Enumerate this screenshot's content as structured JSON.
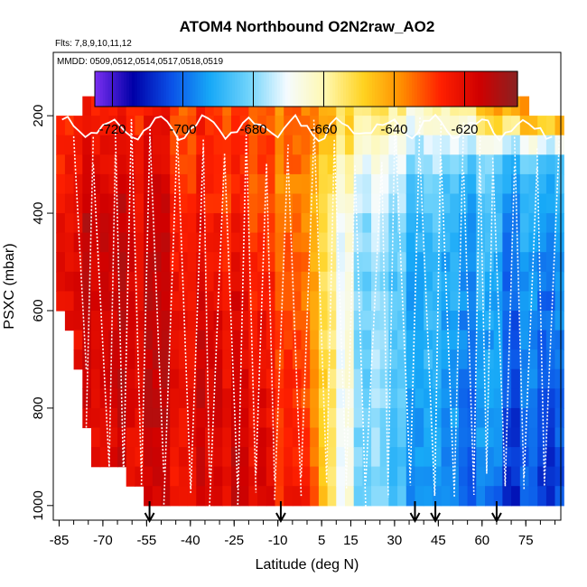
{
  "chart_data": {
    "type": "heatmap",
    "title": "ATOM4 Northbound O2N2raw_AO2",
    "note_flights": "Flts: 7,8,9,10,11,12",
    "note_dates": "MMDD: 0509,0512,0514,0517,0518,0519",
    "xlabel": "Latitude (deg N)",
    "ylabel": "PSXC (mbar)",
    "xlim": [
      -87,
      87
    ],
    "ylim": [
      1030,
      70
    ],
    "x_ticks": [
      -85,
      -70,
      -55,
      -40,
      -25,
      -10,
      5,
      15,
      30,
      45,
      60,
      75
    ],
    "y_ticks": [
      200,
      400,
      600,
      800,
      1000
    ],
    "colorbar": {
      "range": [
        -725,
        -605
      ],
      "ticks": [
        -720,
        -700,
        -680,
        -660,
        -640,
        -620
      ],
      "colors": [
        "#7b2ff0",
        "#0000a8",
        "#0b52e8",
        "#17a9f7",
        "#6fd3fb",
        "#f5fbff",
        "#fff8b0",
        "#ffd21f",
        "#ff8c00",
        "#ff2000",
        "#d00000",
        "#8a2222"
      ]
    },
    "profile_arrows_lat": [
      -54,
      -9,
      37,
      44,
      65
    ],
    "field_lat_centers": [
      -80,
      -70,
      -60,
      -50,
      -40,
      -30,
      -20,
      -10,
      0,
      10,
      20,
      30,
      40,
      50,
      60,
      70,
      80
    ],
    "field_pressure_centers": [
      200,
      280,
      360,
      440,
      520,
      600,
      680,
      760,
      840,
      920,
      1000
    ],
    "field_values": [
      [
        -625,
        -625,
        -626,
        -627,
        -628,
        -630,
        -632,
        -635,
        -640,
        -648,
        -655,
        -660,
        -665,
        -660,
        -650,
        -640,
        -635
      ],
      [
        -623,
        -622,
        -622,
        -623,
        -625,
        -628,
        -630,
        -633,
        -640,
        -652,
        -665,
        -672,
        -676,
        -678,
        -680,
        -682,
        -683
      ],
      [
        -618,
        -618,
        -619,
        -621,
        -624,
        -628,
        -631,
        -636,
        -645,
        -660,
        -672,
        -680,
        -684,
        -688,
        -690,
        -692,
        -692
      ],
      [
        -617,
        -617,
        -618,
        -620,
        -622,
        -625,
        -628,
        -632,
        -642,
        -663,
        -676,
        -684,
        -688,
        -690,
        -692,
        -694,
        -694
      ],
      [
        -617,
        -617,
        -617,
        -618,
        -620,
        -623,
        -626,
        -630,
        -640,
        -663,
        -678,
        -686,
        -690,
        -692,
        -694,
        -696,
        -697
      ],
      [
        -618,
        -617,
        -617,
        -617,
        -618,
        -620,
        -624,
        -628,
        -640,
        -662,
        -678,
        -686,
        -690,
        -693,
        -696,
        -698,
        -698
      ],
      [
        -619,
        -618,
        -617,
        -617,
        -617,
        -619,
        -622,
        -627,
        -638,
        -662,
        -678,
        -686,
        -690,
        -694,
        -697,
        -699,
        -700
      ],
      [
        -620,
        -619,
        -618,
        -617,
        -617,
        -618,
        -621,
        -626,
        -636,
        -662,
        -678,
        -687,
        -691,
        -695,
        -698,
        -700,
        -702
      ],
      [
        -621,
        -620,
        -619,
        -618,
        -617,
        -618,
        -620,
        -625,
        -634,
        -662,
        -679,
        -688,
        -692,
        -696,
        -699,
        -702,
        -704
      ],
      [
        -622,
        -621,
        -620,
        -619,
        -618,
        -618,
        -620,
        -624,
        -632,
        -662,
        -680,
        -689,
        -693,
        -697,
        -700,
        -703,
        -705
      ],
      [
        -623,
        -622,
        -621,
        -620,
        -619,
        -619,
        -620,
        -623,
        -630,
        -660,
        -680,
        -690,
        -694,
        -698,
        -702,
        -705,
        -706
      ]
    ],
    "grid": false
  }
}
